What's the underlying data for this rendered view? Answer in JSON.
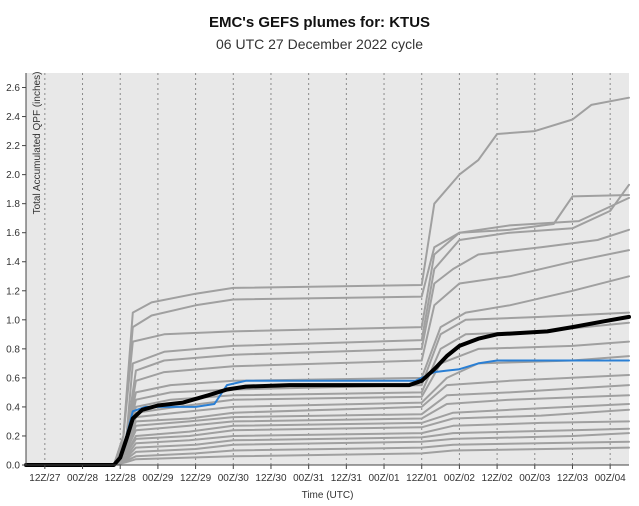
{
  "chart_data": {
    "type": "line",
    "title": "EMC's GEFS plumes for: KTUS",
    "subtitle": "06 UTC 27 December 2022 cycle",
    "xlabel": "Time (UTC)",
    "ylabel": "Total Accumulated QPF (inches)",
    "ylim": [
      0,
      2.7
    ],
    "yticks": [
      0.0,
      0.2,
      0.4,
      0.6,
      0.8,
      1.0,
      1.2,
      1.4,
      1.6,
      1.8,
      2.0,
      2.2,
      2.4,
      2.6
    ],
    "ytick_labels": [
      "0.0",
      "0.2",
      "0.4",
      "0.6",
      "0.8",
      "1.0",
      "1.2",
      "1.4",
      "1.6",
      "1.8",
      "2.0",
      "2.2",
      "2.4",
      "2.6"
    ],
    "xticks": [
      12,
      24,
      36,
      48,
      60,
      72,
      84,
      96,
      108,
      120,
      132,
      144,
      156,
      168,
      180,
      192
    ],
    "xtick_labels": [
      "12Z/27",
      "00Z/28",
      "12Z/28",
      "00Z/29",
      "12Z/29",
      "00Z/30",
      "12Z/30",
      "00Z/31",
      "12Z/31",
      "00Z/01",
      "12Z/01",
      "00Z/02",
      "12Z/02",
      "00Z/03",
      "12Z/03",
      "00Z/04"
    ],
    "xlim": [
      6,
      198
    ],
    "x_units": "hours since 00Z/27",
    "grid": "vertical dotted",
    "background": "#e8e8e8",
    "member_color": "#a0a0a0",
    "mean_color": "#000000",
    "control_color": "#2a7fd4",
    "series": [
      {
        "role": "member",
        "points": [
          [
            6,
            0
          ],
          [
            34,
            0
          ],
          [
            37,
            0.2
          ],
          [
            40,
            1.05
          ],
          [
            46,
            1.12
          ],
          [
            60,
            1.18
          ],
          [
            72,
            1.22
          ],
          [
            132,
            1.24
          ],
          [
            136,
            1.8
          ],
          [
            144,
            2.0
          ],
          [
            150,
            2.1
          ],
          [
            156,
            2.28
          ],
          [
            168,
            2.3
          ],
          [
            180,
            2.38
          ],
          [
            186,
            2.48
          ],
          [
            198,
            2.53
          ]
        ]
      },
      {
        "role": "member",
        "points": [
          [
            6,
            0
          ],
          [
            34,
            0
          ],
          [
            37,
            0.2
          ],
          [
            40,
            0.95
          ],
          [
            46,
            1.03
          ],
          [
            60,
            1.1
          ],
          [
            72,
            1.14
          ],
          [
            132,
            1.16
          ],
          [
            136,
            1.5
          ],
          [
            144,
            1.6
          ],
          [
            160,
            1.62
          ],
          [
            174,
            1.66
          ],
          [
            180,
            1.85
          ],
          [
            198,
            1.86
          ]
        ]
      },
      {
        "role": "member",
        "points": [
          [
            6,
            0
          ],
          [
            34,
            0
          ],
          [
            37,
            0.2
          ],
          [
            40,
            0.85
          ],
          [
            50,
            0.9
          ],
          [
            72,
            0.92
          ],
          [
            132,
            0.95
          ],
          [
            136,
            1.45
          ],
          [
            144,
            1.6
          ],
          [
            160,
            1.65
          ],
          [
            182,
            1.68
          ],
          [
            198,
            1.84
          ]
        ]
      },
      {
        "role": "member",
        "points": [
          [
            6,
            0
          ],
          [
            34,
            0
          ],
          [
            38,
            0.2
          ],
          [
            40,
            0.7
          ],
          [
            50,
            0.78
          ],
          [
            72,
            0.82
          ],
          [
            132,
            0.86
          ],
          [
            136,
            1.35
          ],
          [
            144,
            1.55
          ],
          [
            160,
            1.6
          ],
          [
            180,
            1.63
          ],
          [
            192,
            1.75
          ],
          [
            198,
            1.93
          ]
        ]
      },
      {
        "role": "member",
        "points": [
          [
            6,
            0
          ],
          [
            34,
            0
          ],
          [
            38,
            0.2
          ],
          [
            41,
            0.65
          ],
          [
            50,
            0.72
          ],
          [
            72,
            0.76
          ],
          [
            132,
            0.8
          ],
          [
            136,
            1.25
          ],
          [
            142,
            1.35
          ],
          [
            150,
            1.45
          ],
          [
            170,
            1.5
          ],
          [
            188,
            1.55
          ],
          [
            198,
            1.62
          ]
        ]
      },
      {
        "role": "member",
        "points": [
          [
            6,
            0
          ],
          [
            34,
            0
          ],
          [
            38,
            0.2
          ],
          [
            41,
            0.58
          ],
          [
            50,
            0.64
          ],
          [
            72,
            0.68
          ],
          [
            132,
            0.72
          ],
          [
            136,
            1.1
          ],
          [
            144,
            1.25
          ],
          [
            160,
            1.3
          ],
          [
            180,
            1.4
          ],
          [
            198,
            1.48
          ]
        ]
      },
      {
        "role": "member",
        "points": [
          [
            6,
            0
          ],
          [
            34,
            0
          ],
          [
            38,
            0.2
          ],
          [
            41,
            0.5
          ],
          [
            52,
            0.55
          ],
          [
            72,
            0.58
          ],
          [
            132,
            0.6
          ],
          [
            138,
            0.95
          ],
          [
            146,
            1.05
          ],
          [
            160,
            1.1
          ],
          [
            180,
            1.2
          ],
          [
            198,
            1.3
          ]
        ]
      },
      {
        "role": "member",
        "points": [
          [
            6,
            0
          ],
          [
            34,
            0
          ],
          [
            38,
            0.15
          ],
          [
            41,
            0.45
          ],
          [
            52,
            0.5
          ],
          [
            72,
            0.52
          ],
          [
            132,
            0.55
          ],
          [
            138,
            0.9
          ],
          [
            146,
            1.0
          ],
          [
            170,
            1.02
          ],
          [
            198,
            1.05
          ]
        ]
      },
      {
        "role": "member",
        "points": [
          [
            6,
            0
          ],
          [
            34,
            0
          ],
          [
            38,
            0.15
          ],
          [
            41,
            0.4
          ],
          [
            52,
            0.45
          ],
          [
            72,
            0.48
          ],
          [
            132,
            0.5
          ],
          [
            138,
            0.8
          ],
          [
            146,
            0.9
          ],
          [
            170,
            0.92
          ],
          [
            198,
            0.98
          ]
        ]
      },
      {
        "role": "member",
        "points": [
          [
            6,
            0
          ],
          [
            34,
            0
          ],
          [
            38,
            0.15
          ],
          [
            41,
            0.36
          ],
          [
            54,
            0.4
          ],
          [
            72,
            0.45
          ],
          [
            132,
            0.47
          ],
          [
            138,
            0.7
          ],
          [
            150,
            0.8
          ],
          [
            180,
            0.82
          ],
          [
            198,
            0.85
          ]
        ]
      },
      {
        "role": "member",
        "points": [
          [
            6,
            0
          ],
          [
            34,
            0
          ],
          [
            38,
            0.12
          ],
          [
            41,
            0.33
          ],
          [
            54,
            0.36
          ],
          [
            72,
            0.4
          ],
          [
            132,
            0.43
          ],
          [
            140,
            0.6
          ],
          [
            150,
            0.7
          ],
          [
            180,
            0.72
          ],
          [
            198,
            0.75
          ]
        ]
      },
      {
        "role": "member",
        "points": [
          [
            6,
            0
          ],
          [
            34,
            0
          ],
          [
            38,
            0.12
          ],
          [
            41,
            0.3
          ],
          [
            58,
            0.32
          ],
          [
            72,
            0.36
          ],
          [
            132,
            0.4
          ],
          [
            140,
            0.55
          ],
          [
            160,
            0.58
          ],
          [
            198,
            0.62
          ]
        ]
      },
      {
        "role": "member",
        "points": [
          [
            6,
            0
          ],
          [
            34,
            0
          ],
          [
            38,
            0.1
          ],
          [
            41,
            0.27
          ],
          [
            58,
            0.3
          ],
          [
            72,
            0.33
          ],
          [
            132,
            0.35
          ],
          [
            140,
            0.48
          ],
          [
            160,
            0.5
          ],
          [
            198,
            0.55
          ]
        ]
      },
      {
        "role": "member",
        "points": [
          [
            6,
            0
          ],
          [
            34,
            0
          ],
          [
            38,
            0.1
          ],
          [
            41,
            0.24
          ],
          [
            58,
            0.27
          ],
          [
            72,
            0.3
          ],
          [
            132,
            0.32
          ],
          [
            140,
            0.42
          ],
          [
            160,
            0.45
          ],
          [
            198,
            0.48
          ]
        ]
      },
      {
        "role": "member",
        "points": [
          [
            6,
            0
          ],
          [
            34,
            0
          ],
          [
            38,
            0.08
          ],
          [
            41,
            0.2
          ],
          [
            58,
            0.23
          ],
          [
            72,
            0.27
          ],
          [
            132,
            0.29
          ],
          [
            142,
            0.36
          ],
          [
            160,
            0.38
          ],
          [
            198,
            0.42
          ]
        ]
      },
      {
        "role": "member",
        "points": [
          [
            6,
            0
          ],
          [
            34,
            0
          ],
          [
            38,
            0.08
          ],
          [
            41,
            0.18
          ],
          [
            58,
            0.2
          ],
          [
            72,
            0.24
          ],
          [
            132,
            0.26
          ],
          [
            142,
            0.32
          ],
          [
            170,
            0.34
          ],
          [
            198,
            0.38
          ]
        ]
      },
      {
        "role": "member",
        "points": [
          [
            6,
            0
          ],
          [
            34,
            0
          ],
          [
            38,
            0.06
          ],
          [
            41,
            0.15
          ],
          [
            58,
            0.17
          ],
          [
            72,
            0.2
          ],
          [
            132,
            0.22
          ],
          [
            142,
            0.27
          ],
          [
            170,
            0.29
          ],
          [
            198,
            0.3
          ]
        ]
      },
      {
        "role": "member",
        "points": [
          [
            6,
            0
          ],
          [
            34,
            0
          ],
          [
            38,
            0.05
          ],
          [
            41,
            0.12
          ],
          [
            60,
            0.14
          ],
          [
            72,
            0.17
          ],
          [
            132,
            0.19
          ],
          [
            142,
            0.22
          ],
          [
            180,
            0.24
          ],
          [
            198,
            0.25
          ]
        ]
      },
      {
        "role": "member",
        "points": [
          [
            6,
            0
          ],
          [
            34,
            0
          ],
          [
            38,
            0.04
          ],
          [
            41,
            0.09
          ],
          [
            60,
            0.11
          ],
          [
            72,
            0.14
          ],
          [
            132,
            0.16
          ],
          [
            142,
            0.18
          ],
          [
            180,
            0.2
          ],
          [
            198,
            0.22
          ]
        ]
      },
      {
        "role": "member",
        "points": [
          [
            6,
            0
          ],
          [
            34,
            0
          ],
          [
            38,
            0.03
          ],
          [
            41,
            0.06
          ],
          [
            60,
            0.08
          ],
          [
            72,
            0.1
          ],
          [
            132,
            0.12
          ],
          [
            142,
            0.14
          ],
          [
            198,
            0.16
          ]
        ]
      },
      {
        "role": "member",
        "points": [
          [
            6,
            0
          ],
          [
            34,
            0
          ],
          [
            38,
            0.02
          ],
          [
            41,
            0.04
          ],
          [
            72,
            0.06
          ],
          [
            132,
            0.08
          ],
          [
            142,
            0.1
          ],
          [
            198,
            0.12
          ]
        ]
      },
      {
        "role": "control",
        "points": [
          [
            6,
            0
          ],
          [
            34,
            0
          ],
          [
            36,
            0.05
          ],
          [
            38,
            0.2
          ],
          [
            40,
            0.37
          ],
          [
            44,
            0.4
          ],
          [
            60,
            0.4
          ],
          [
            66,
            0.42
          ],
          [
            70,
            0.55
          ],
          [
            76,
            0.58
          ],
          [
            100,
            0.58
          ],
          [
            130,
            0.58
          ],
          [
            136,
            0.64
          ],
          [
            140,
            0.65
          ],
          [
            144,
            0.66
          ],
          [
            150,
            0.7
          ],
          [
            156,
            0.72
          ],
          [
            198,
            0.72
          ]
        ]
      },
      {
        "role": "mean",
        "points": [
          [
            6,
            0
          ],
          [
            34,
            0
          ],
          [
            36,
            0.05
          ],
          [
            38,
            0.18
          ],
          [
            40,
            0.32
          ],
          [
            43,
            0.38
          ],
          [
            48,
            0.41
          ],
          [
            56,
            0.43
          ],
          [
            64,
            0.48
          ],
          [
            70,
            0.52
          ],
          [
            76,
            0.54
          ],
          [
            90,
            0.55
          ],
          [
            110,
            0.55
          ],
          [
            128,
            0.55
          ],
          [
            132,
            0.58
          ],
          [
            136,
            0.66
          ],
          [
            140,
            0.75
          ],
          [
            144,
            0.82
          ],
          [
            150,
            0.87
          ],
          [
            156,
            0.9
          ],
          [
            164,
            0.91
          ],
          [
            172,
            0.92
          ],
          [
            180,
            0.95
          ],
          [
            190,
            0.99
          ],
          [
            198,
            1.02
          ]
        ]
      }
    ]
  }
}
